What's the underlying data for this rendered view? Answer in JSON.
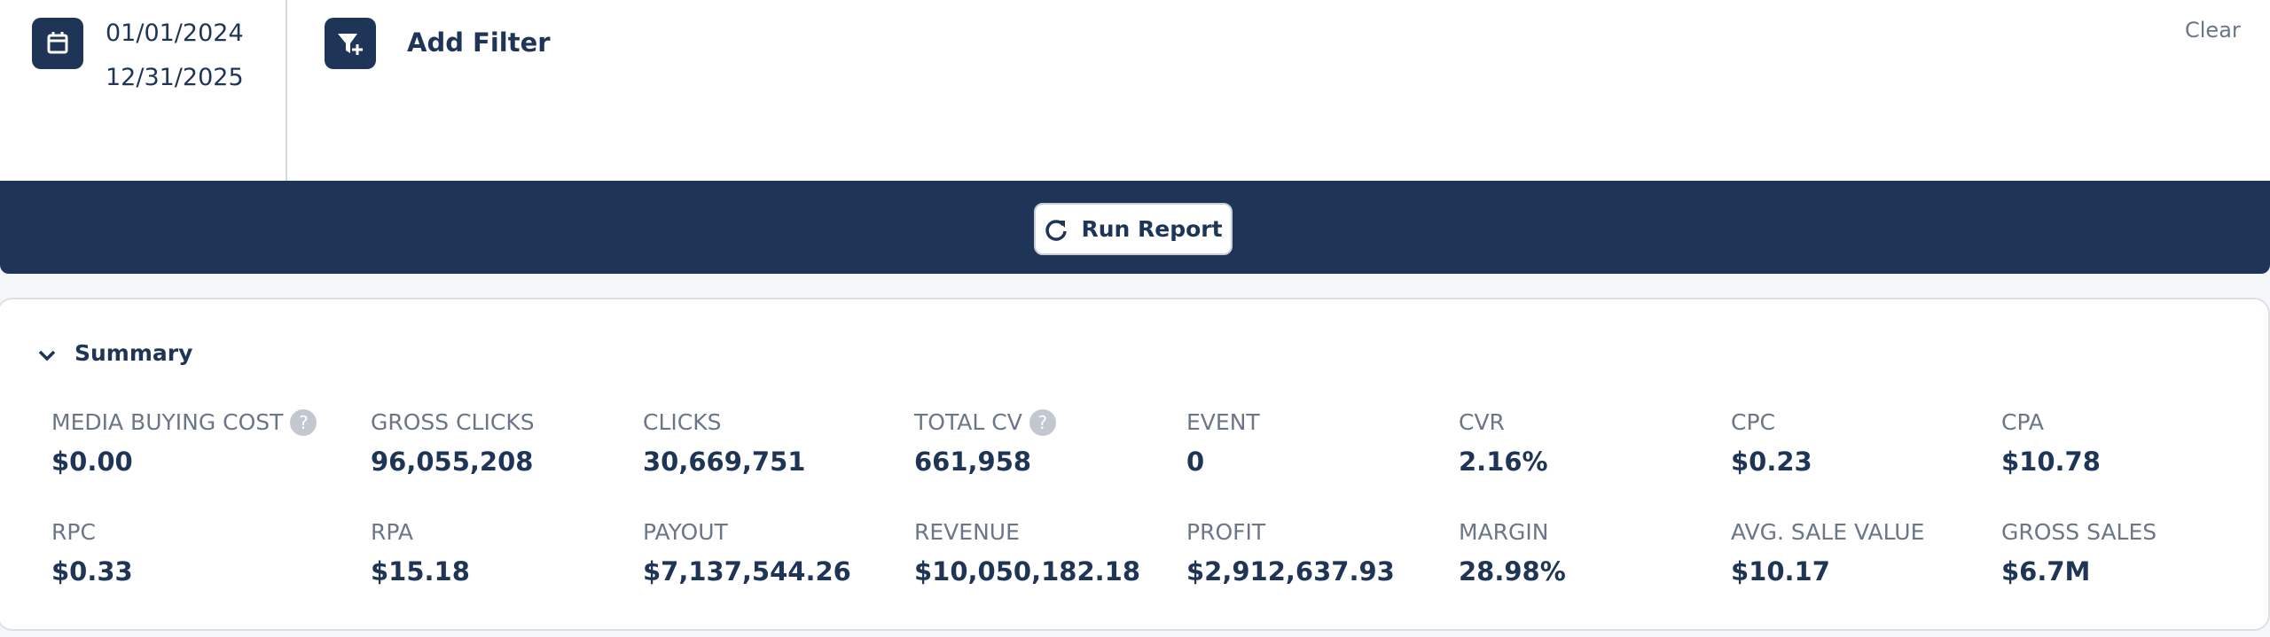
{
  "header": {
    "date_start": "01/01/2024",
    "date_end": "12/31/2025",
    "add_filter": "Add Filter",
    "clear": "Clear"
  },
  "run_report": "Run Report",
  "summary": {
    "title": "Summary",
    "metrics": [
      {
        "label": "MEDIA BUYING COST",
        "value": "$0.00"
      },
      {
        "label": "GROSS CLICKS",
        "value": "96,055,208"
      },
      {
        "label": "CLICKS",
        "value": "30,669,751"
      },
      {
        "label": "TOTAL CV",
        "value": "661,958"
      },
      {
        "label": "EVENT",
        "value": "0"
      },
      {
        "label": "CVR",
        "value": "2.16%"
      },
      {
        "label": "CPC",
        "value": "$0.23"
      },
      {
        "label": "CPA",
        "value": "$10.78"
      },
      {
        "label": "RPC",
        "value": "$0.33"
      },
      {
        "label": "RPA",
        "value": "$15.18"
      },
      {
        "label": "PAYOUT",
        "value": "$7,137,544.26"
      },
      {
        "label": "REVENUE",
        "value": "$10,050,182.18"
      },
      {
        "label": "PROFIT",
        "value": "$2,912,637.93"
      },
      {
        "label": "MARGIN",
        "value": "28.98%"
      },
      {
        "label": "AVG. SALE VALUE",
        "value": "$10.17"
      },
      {
        "label": "GROSS SALES",
        "value": "$6.7M"
      }
    ]
  }
}
